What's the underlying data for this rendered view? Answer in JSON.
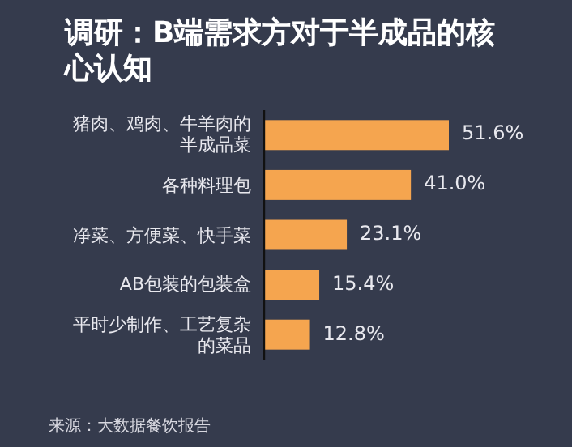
{
  "chart_data": {
    "type": "bar",
    "orientation": "horizontal",
    "title": "调研：B端需求方对于半成品的核心认知",
    "categories": [
      "猪肉、鸡肉、牛羊肉的半成品菜",
      "各种料理包",
      "净菜、方便菜、快手菜",
      "AB包装的包装盒",
      "平时少制作、工艺复杂的菜品"
    ],
    "values": [
      51.6,
      41.0,
      23.1,
      15.4,
      12.8
    ],
    "value_labels": [
      "51.6%",
      "41.0%",
      "23.1%",
      "15.4%",
      "12.8%"
    ],
    "color": "#f5a54f",
    "annotations": [
      "来源：大数据餐饮报告"
    ]
  }
}
